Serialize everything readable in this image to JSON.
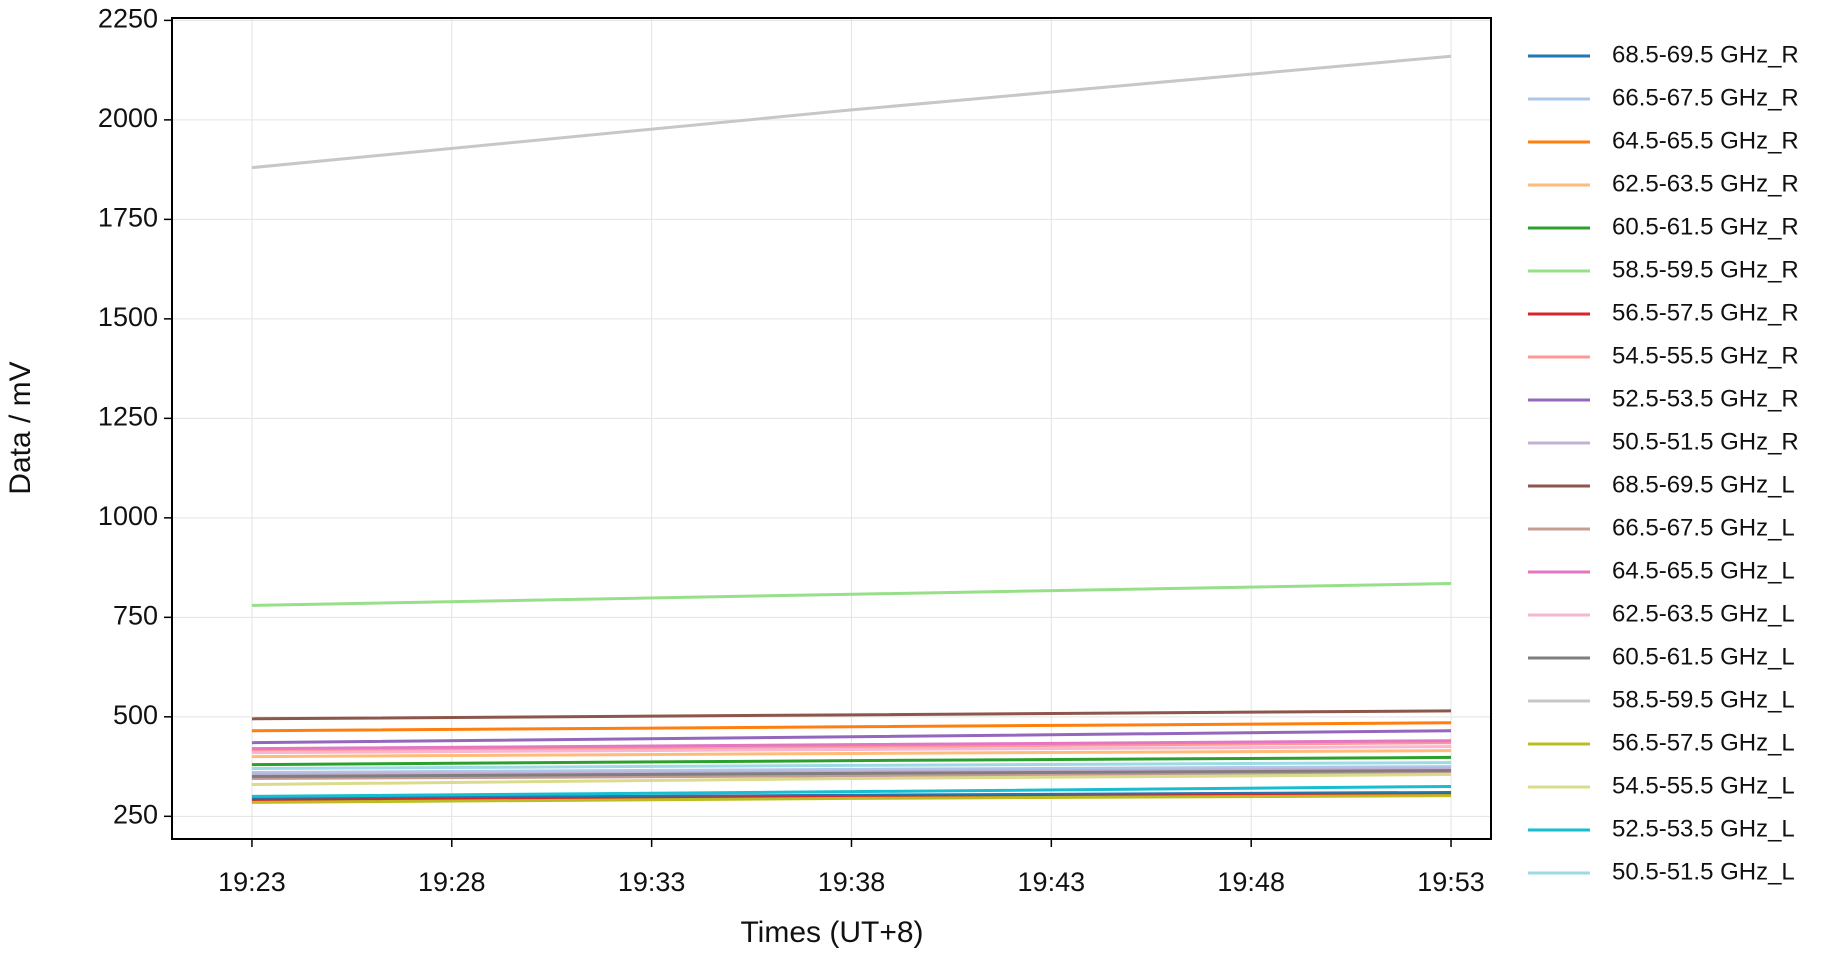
{
  "chart_data": {
    "type": "line",
    "x_label": "Times (UT+8)",
    "y_label": "Data / mV",
    "x": [
      "19:23",
      "19:38",
      "19:53"
    ],
    "xlim": [
      "19:21",
      "19:54"
    ],
    "xticks": [
      "19:23",
      "19:28",
      "19:33",
      "19:38",
      "19:43",
      "19:48",
      "19:53"
    ],
    "ylim": [
      193,
      2256
    ],
    "yticks": [
      250,
      500,
      750,
      1000,
      1250,
      1500,
      1750,
      2000,
      2250
    ],
    "grid": true,
    "legend": "outside right",
    "series": [
      {
        "name": "68.5-69.5 GHz_R",
        "color": "#1f77b4",
        "values": [
          295,
          303,
          310
        ]
      },
      {
        "name": "66.5-67.5 GHz_R",
        "color": "#aec7e8",
        "values": [
          360,
          368,
          375
        ]
      },
      {
        "name": "64.5-65.5 GHz_R",
        "color": "#ff7f0e",
        "values": [
          465,
          475,
          485
        ]
      },
      {
        "name": "62.5-63.5 GHz_R",
        "color": "#ffbb78",
        "values": [
          400,
          408,
          415
        ]
      },
      {
        "name": "60.5-61.5 GHz_R",
        "color": "#2ca02c",
        "values": [
          380,
          390,
          398
        ]
      },
      {
        "name": "58.5-59.5 GHz_R",
        "color": "#98df8a",
        "values": [
          780,
          808,
          835
        ]
      },
      {
        "name": "56.5-57.5 GHz_R",
        "color": "#d62728",
        "values": [
          290,
          298,
          305
        ]
      },
      {
        "name": "54.5-55.5 GHz_R",
        "color": "#ff9896",
        "values": [
          415,
          425,
          435
        ]
      },
      {
        "name": "52.5-53.5 GHz_R",
        "color": "#9467bd",
        "values": [
          435,
          450,
          465
        ]
      },
      {
        "name": "50.5-51.5 GHz_R",
        "color": "#c5b0d5",
        "values": [
          355,
          362,
          370
        ]
      },
      {
        "name": "68.5-69.5 GHz_L",
        "color": "#8c564b",
        "values": [
          495,
          505,
          515
        ]
      },
      {
        "name": "66.5-67.5 GHz_L",
        "color": "#c49c94",
        "values": [
          345,
          352,
          360
        ]
      },
      {
        "name": "64.5-65.5 GHz_L",
        "color": "#e377c2",
        "values": [
          420,
          430,
          440
        ]
      },
      {
        "name": "62.5-63.5 GHz_L",
        "color": "#f7b6d2",
        "values": [
          410,
          418,
          425
        ]
      },
      {
        "name": "60.5-61.5 GHz_L",
        "color": "#7f7f7f",
        "values": [
          350,
          358,
          365
        ]
      },
      {
        "name": "58.5-59.5 GHz_L",
        "color": "#c7c7c7",
        "values": [
          1880,
          2025,
          2160
        ]
      },
      {
        "name": "56.5-57.5 GHz_L",
        "color": "#bcbd22",
        "values": [
          285,
          295,
          302
        ]
      },
      {
        "name": "54.5-55.5 GHz_L",
        "color": "#dbdb8d",
        "values": [
          330,
          345,
          355
        ]
      },
      {
        "name": "52.5-53.5 GHz_L",
        "color": "#17becf",
        "values": [
          300,
          312,
          325
        ]
      },
      {
        "name": "50.5-51.5 GHz_L",
        "color": "#9edae5",
        "values": [
          370,
          378,
          385
        ]
      }
    ]
  }
}
